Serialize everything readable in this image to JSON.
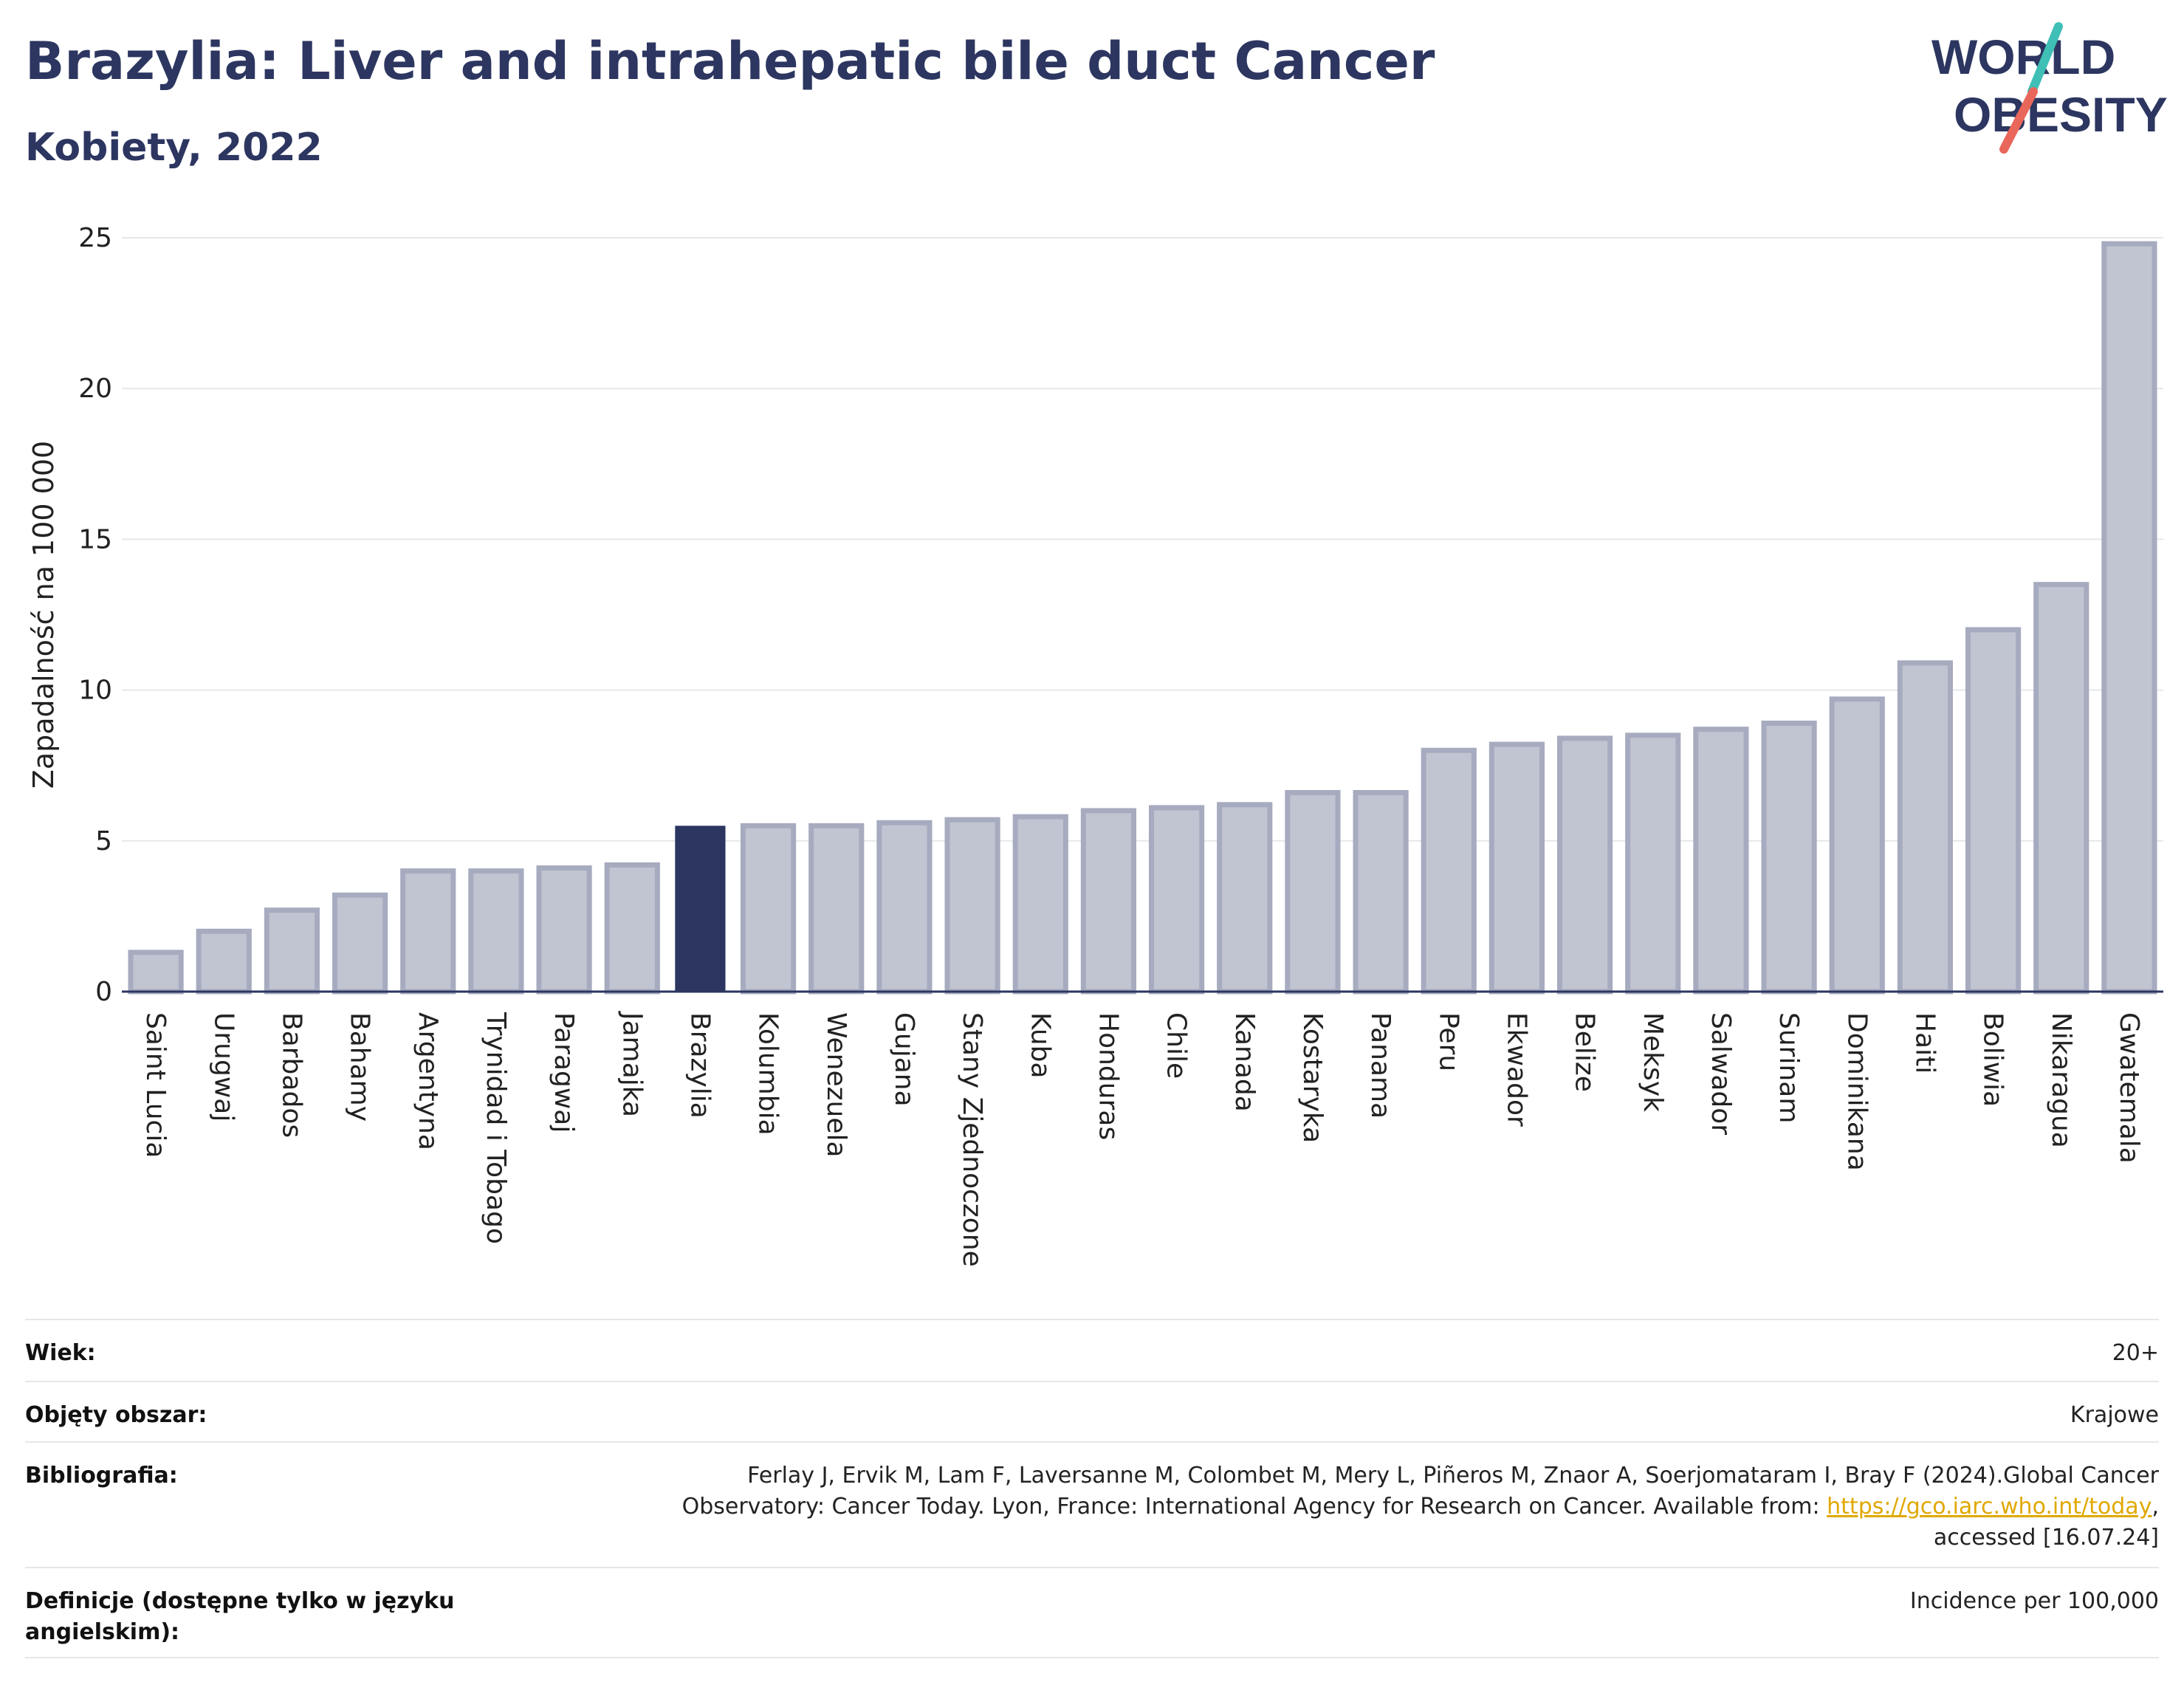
{
  "header": {
    "title": "Brazylia: Liver and intrahepatic bile duct Cancer",
    "subtitle": "Kobiety, 2022"
  },
  "logo": {
    "line1": "WORLD",
    "line2": "OBESITY",
    "colors": {
      "text": "#2c3660",
      "slash_top": "#3fbfb6",
      "slash_bottom": "#e8665a"
    }
  },
  "chart_data": {
    "type": "bar",
    "ylabel": "Zapadalność na 100 000",
    "xlabel": "",
    "ylim": [
      0,
      25
    ],
    "yticks": [
      0,
      5,
      10,
      15,
      20,
      25
    ],
    "grid": true,
    "highlight": "Brazylia",
    "colors": {
      "bar": "#c1c4d1",
      "bar_border": "#a7abbf",
      "highlight": "#2c3660"
    },
    "categories": [
      "Saint Lucia",
      "Urugwaj",
      "Barbados",
      "Bahamy",
      "Argentyna",
      "Trynidad i Tobago",
      "Paragwaj",
      "Jamajka",
      "Brazylia",
      "Kolumbia",
      "Wenezuela",
      "Gujana",
      "Stany Zjednoczone",
      "Kuba",
      "Honduras",
      "Chile",
      "Kanada",
      "Kostaryka",
      "Panama",
      "Peru",
      "Ekwador",
      "Belize",
      "Meksyk",
      "Salwador",
      "Surinam",
      "Dominikana",
      "Haiti",
      "Boliwia",
      "Nikaragua",
      "Gwatemala"
    ],
    "values": [
      1.3,
      2.0,
      2.7,
      3.2,
      4.0,
      4.0,
      4.1,
      4.2,
      5.5,
      5.5,
      5.5,
      5.6,
      5.7,
      5.8,
      6.0,
      6.1,
      6.2,
      6.6,
      6.6,
      8.0,
      8.2,
      8.4,
      8.5,
      8.7,
      8.9,
      9.7,
      10.9,
      12.0,
      13.5,
      24.8
    ]
  },
  "meta": [
    {
      "label": "Wiek:",
      "value": "20+"
    },
    {
      "label": "Objęty obszar:",
      "value": "Krajowe"
    },
    {
      "label": "Bibliografia:",
      "value_lines": [
        "Ferlay J, Ervik M, Lam F, Laversanne M, Colombet M, Mery L, Piñeros M, Znaor A, Soerjomataram I, Bray F (2024).Global Cancer",
        "Observatory: Cancer Today. Lyon, France: International Agency for Research on Cancer. Available from: ",
        "https://gco.iarc.who.int/today",
        ",",
        "accessed [16.07.24]"
      ]
    },
    {
      "label_lines": [
        "Definicje (dostępne tylko w języku",
        "angielskim):"
      ],
      "value": "Incidence per 100,000"
    }
  ]
}
